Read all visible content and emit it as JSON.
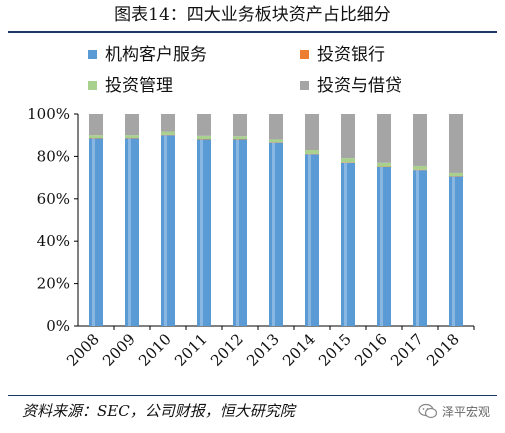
{
  "title": "图表14：四大业务板块资产占比细分",
  "source_note": "资料来源：SEC，公司财报，恒大研究院",
  "watermark": "泽平宏观",
  "legend": {
    "institutional": "机构客户服务",
    "investment_banking": "投资银行",
    "investment_management": "投资管理",
    "investing_lending": "投资与借贷"
  },
  "chart_data": {
    "type": "bar",
    "stacked": true,
    "categories": [
      "2008",
      "2009",
      "2010",
      "2011",
      "2012",
      "2013",
      "2014",
      "2015",
      "2016",
      "2017",
      "2018"
    ],
    "series": [
      {
        "name": "机构客户服务",
        "color": "#5b9bd5",
        "values": [
          88.5,
          88.5,
          90.0,
          88.0,
          88.0,
          86.5,
          81.0,
          77.0,
          75.0,
          73.5,
          70.5
        ]
      },
      {
        "name": "投资银行",
        "color": "#ed7d31",
        "values": [
          0.2,
          0.2,
          0.2,
          0.2,
          0.2,
          0.2,
          0.2,
          0.2,
          0.2,
          0.2,
          0.2
        ]
      },
      {
        "name": "投资管理",
        "color": "#a9d18e",
        "values": [
          1.3,
          1.3,
          1.5,
          1.5,
          1.3,
          1.3,
          1.8,
          2.0,
          1.8,
          1.8,
          1.5
        ]
      },
      {
        "name": "投资与借贷",
        "color": "#a5a5a5",
        "values": [
          10.0,
          10.0,
          8.3,
          10.3,
          10.5,
          12.0,
          17.0,
          20.8,
          23.0,
          24.5,
          27.8
        ]
      }
    ],
    "ylim": [
      0,
      100
    ],
    "yticks": [
      "0%",
      "20%",
      "40%",
      "60%",
      "80%",
      "100%"
    ],
    "xlabel": "",
    "ylabel": "",
    "grid": false,
    "legend_position": "top"
  }
}
